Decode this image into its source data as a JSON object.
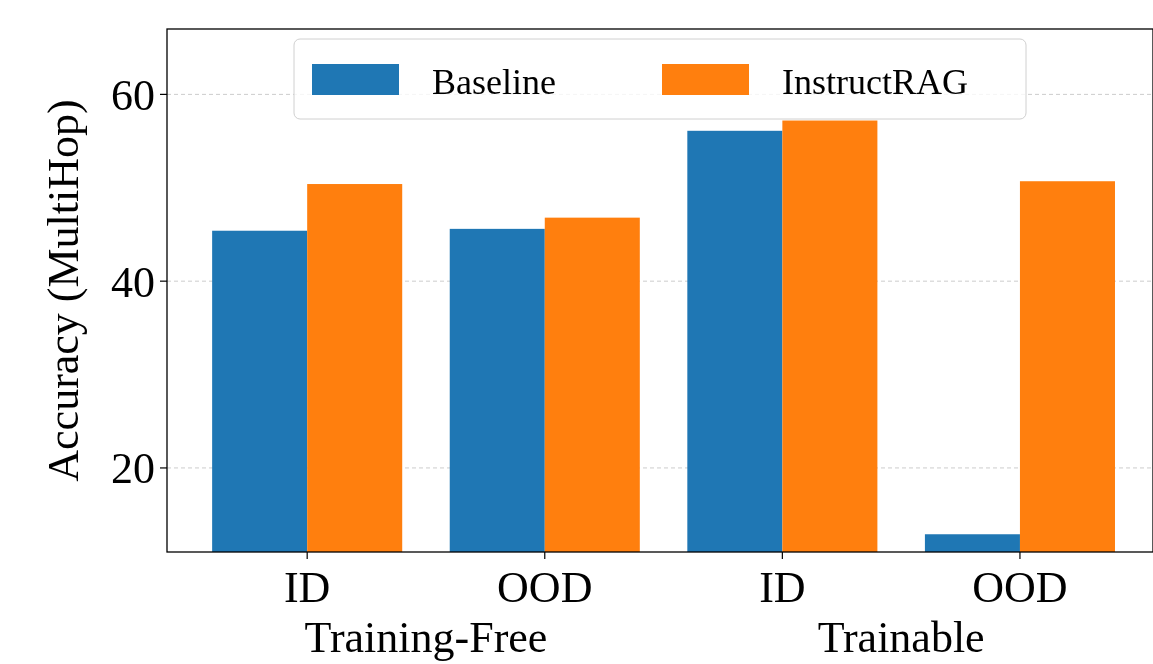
{
  "chart_data": {
    "type": "bar",
    "ylabel": "Accuracy (MultiHop)",
    "categories": [
      "ID",
      "OOD",
      "ID",
      "OOD"
    ],
    "annotations": [
      "Training-Free",
      "Trainable"
    ],
    "series": [
      {
        "name": "Baseline",
        "color": "#1f77b4",
        "values": [
          45.4,
          45.6,
          56.1,
          12.9
        ]
      },
      {
        "name": "InstructRAG",
        "color": "#ff7f0e",
        "values": [
          50.4,
          46.8,
          57.2,
          50.7
        ]
      }
    ],
    "ylim": [
      11,
      67
    ],
    "yticks": [
      20,
      40,
      60
    ],
    "grid": "y",
    "legend": "top"
  }
}
